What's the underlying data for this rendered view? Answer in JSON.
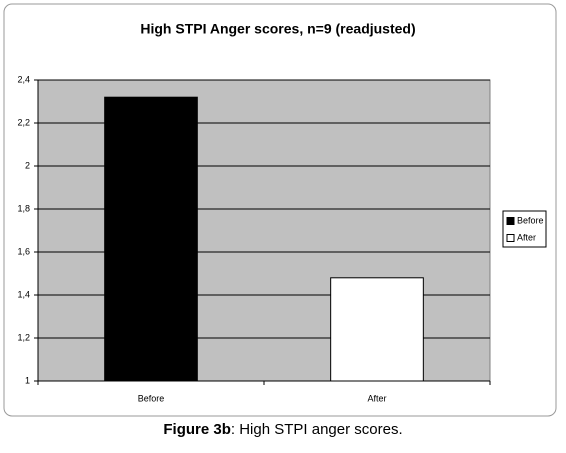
{
  "chart_data": {
    "type": "bar",
    "title": "High STPI Anger scores,  n=9 (readjusted)",
    "categories": [
      "Before",
      "After"
    ],
    "values": [
      2.32,
      1.48
    ],
    "colors": [
      "#000000",
      "#ffffff"
    ],
    "ylim": [
      1,
      2.4
    ],
    "yticks": [
      1,
      {
        "value": 1.2,
        "label": "1,2"
      },
      {
        "value": 1.4,
        "label": "1,4"
      },
      {
        "value": 1.6,
        "label": "1,6"
      },
      {
        "value": 1.8,
        "label": "1,8"
      },
      2,
      {
        "value": 2.2,
        "label": "2,2"
      },
      {
        "value": 2.4,
        "label": "2,4"
      }
    ],
    "grid": true,
    "legend": "right",
    "plot_background": "#c0c0c0"
  },
  "caption": {
    "label": "Figure 3b",
    "text": ": High STPI anger scores."
  }
}
